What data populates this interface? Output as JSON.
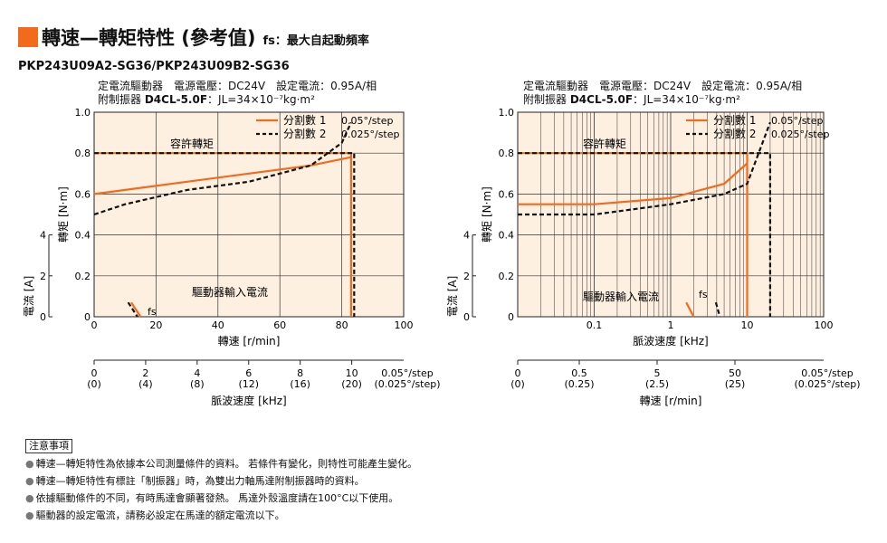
{
  "header": {
    "title": "轉速—轉矩特性 (參考值)",
    "fs_note": "fs：最大自起動頻率",
    "model": "PKP243U09A2-SG36/PKP243U09B2-SG36"
  },
  "colors": {
    "accent": "#f26b1d",
    "plot_bg": "#fdf0e1",
    "dash": "#111111"
  },
  "conditions": {
    "line1": "定電流驅動器　電源電壓：DC24V　設定電流：0.95A/相",
    "line2_prefix": "附制振器 ",
    "line2_bold": "D4CL-5.0F",
    "line2_suffix": "：JL=34×10⁻⁷kg·m²"
  },
  "chart_data": [
    {
      "type": "line",
      "x_scale": "linear",
      "xlabel": "轉速 [r/min]",
      "xlim": [
        0,
        100
      ],
      "x_ticks": [
        0,
        20,
        40,
        60,
        80,
        100
      ],
      "ylabel": "轉矩 [N·m]",
      "ylim": [
        0,
        1.0
      ],
      "y_ticks": [
        "0",
        "0.2",
        "0.4",
        "0.6",
        "0.8",
        "1.0"
      ],
      "ylabel2": "電流 [A]",
      "y2_ticks": [
        "0",
        "2",
        "4"
      ],
      "secondary_axis": {
        "label": "脈波速度 [kHz]",
        "ticks_top": [
          "0",
          "2",
          "4",
          "6",
          "8",
          "10"
        ],
        "ticks_bottom": [
          "(0)",
          "(4)",
          "(8)",
          "(12)",
          "(16)",
          "(20)"
        ],
        "unit_top": "0.05°/step",
        "unit_bottom": "(0.025°/step)"
      },
      "legend": {
        "position": "top-right",
        "entries": [
          {
            "name": "分割數 1",
            "step": "0.05°/step",
            "style": "solid"
          },
          {
            "name": "分割數 2",
            "step": "0.025°/step",
            "style": "dashed"
          }
        ]
      },
      "annotations": {
        "torque": "容許轉矩",
        "current": "驅動器輸入電流",
        "fs": "fs"
      },
      "series": [
        {
          "name": "分割數 1",
          "kind": "torque",
          "style": "solid",
          "x": [
            0,
            83,
            83
          ],
          "y": [
            0.8,
            0.8,
            0.0
          ]
        },
        {
          "name": "分割數 2",
          "kind": "torque",
          "style": "dashed",
          "x": [
            0,
            84,
            84
          ],
          "y": [
            0.8,
            0.8,
            0.0
          ]
        },
        {
          "name": "分割數 1",
          "kind": "current",
          "style": "solid",
          "x": [
            0,
            10,
            30,
            50,
            70,
            83
          ],
          "y": [
            0.6,
            0.62,
            0.66,
            0.7,
            0.74,
            0.78
          ]
        },
        {
          "name": "分割數 2",
          "kind": "current",
          "style": "dashed",
          "x": [
            0,
            10,
            30,
            50,
            70,
            80,
            83
          ],
          "y": [
            0.5,
            0.55,
            0.62,
            0.66,
            0.74,
            0.85,
            0.95
          ]
        },
        {
          "name": "分割數 1",
          "kind": "fs",
          "style": "solid",
          "x": [
            12,
            15
          ],
          "y": [
            0.07,
            0.0
          ]
        },
        {
          "name": "分割數 2",
          "kind": "fs",
          "style": "dashed",
          "x": [
            11,
            14
          ],
          "y": [
            0.07,
            0.0
          ]
        }
      ]
    },
    {
      "type": "line",
      "x_scale": "log",
      "xlabel": "脈波速度 [kHz]",
      "xlim": [
        0.01,
        100
      ],
      "x_ticks": [
        "0.1",
        "1",
        "10",
        "100"
      ],
      "ylabel": "轉矩 [N·m]",
      "ylim": [
        0,
        1.0
      ],
      "y_ticks": [
        "0",
        "0.2",
        "0.4",
        "0.6",
        "0.8",
        "1.0"
      ],
      "ylabel2": "電流 [A]",
      "y2_ticks": [
        "0",
        "2",
        "4"
      ],
      "secondary_axis": {
        "label": "轉速 [r/min]",
        "ticks_top": [
          "0",
          "0.5",
          "5",
          "50"
        ],
        "ticks_bottom": [
          "(0)",
          "(0.25)",
          "(2.5)",
          "(25)"
        ],
        "unit_top": "0.05°/step",
        "unit_bottom": "(0.025°/step)"
      },
      "legend": {
        "position": "top-right",
        "entries": [
          {
            "name": "分割數 1",
            "step": "0.05°/step",
            "style": "solid"
          },
          {
            "name": "分割數 2",
            "step": "0.025°/step",
            "style": "dashed"
          }
        ]
      },
      "annotations": {
        "torque": "容許轉矩",
        "current": "驅動器輸入電流",
        "fs": "fs"
      },
      "series": [
        {
          "name": "分割數 1",
          "kind": "torque",
          "style": "solid",
          "x": [
            0.01,
            10,
            10
          ],
          "y": [
            0.8,
            0.8,
            0.0
          ]
        },
        {
          "name": "分割數 2",
          "kind": "torque",
          "style": "dashed",
          "x": [
            0.01,
            20,
            20
          ],
          "y": [
            0.8,
            0.8,
            0.0
          ]
        },
        {
          "name": "分割數 1",
          "kind": "current",
          "style": "solid",
          "x": [
            0.01,
            0.1,
            1,
            5,
            10
          ],
          "y": [
            0.55,
            0.55,
            0.58,
            0.65,
            0.75
          ]
        },
        {
          "name": "分割數 2",
          "kind": "current",
          "style": "dashed",
          "x": [
            0.01,
            0.1,
            1,
            5,
            10,
            20
          ],
          "y": [
            0.5,
            0.5,
            0.55,
            0.6,
            0.65,
            0.95
          ]
        },
        {
          "name": "分割數 1",
          "kind": "fs",
          "style": "solid",
          "x": [
            1.6,
            2.0
          ],
          "y": [
            0.07,
            0.0
          ]
        },
        {
          "name": "分割數 2",
          "kind": "fs",
          "style": "dashed",
          "x": [
            3.9,
            4.4
          ],
          "y": [
            0.07,
            0.0
          ]
        }
      ]
    }
  ],
  "notes": {
    "title": "注意事項",
    "items": [
      "轉速—轉矩特性為依據本公司測量條件的資料。 若條件有變化，則特性可能產生變化。",
      "轉速—轉矩特性有標註「制振器」時，為雙出力軸馬達附制振器時的資料。",
      "依據驅動條件的不同，有時馬達會顯著發熱。 馬達外殼溫度請在100°C以下使用。",
      "驅動器的設定電流，請務必設定在馬達的額定電流以下。"
    ]
  }
}
